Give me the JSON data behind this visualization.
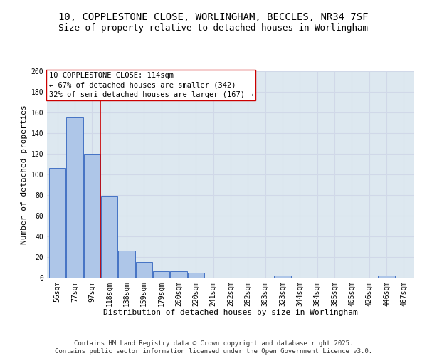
{
  "title1": "10, COPPLESTONE CLOSE, WORLINGHAM, BECCLES, NR34 7SF",
  "title2": "Size of property relative to detached houses in Worlingham",
  "xlabel": "Distribution of detached houses by size in Worlingham",
  "ylabel": "Number of detached properties",
  "categories": [
    "56sqm",
    "77sqm",
    "97sqm",
    "118sqm",
    "138sqm",
    "159sqm",
    "179sqm",
    "200sqm",
    "220sqm",
    "241sqm",
    "262sqm",
    "282sqm",
    "303sqm",
    "323sqm",
    "344sqm",
    "364sqm",
    "385sqm",
    "405sqm",
    "426sqm",
    "446sqm",
    "467sqm"
  ],
  "values": [
    106,
    155,
    120,
    79,
    26,
    15,
    6,
    6,
    5,
    0,
    0,
    0,
    0,
    2,
    0,
    0,
    0,
    0,
    0,
    2,
    0
  ],
  "bar_color": "#aec6e8",
  "bar_edge_color": "#4472c4",
  "vline_x": 2.5,
  "vline_color": "#cc0000",
  "annotation_text": "10 COPPLESTONE CLOSE: 114sqm\n← 67% of detached houses are smaller (342)\n32% of semi-detached houses are larger (167) →",
  "annotation_box_color": "#ffffff",
  "annotation_box_edge": "#cc0000",
  "ylim": [
    0,
    200
  ],
  "yticks": [
    0,
    20,
    40,
    60,
    80,
    100,
    120,
    140,
    160,
    180,
    200
  ],
  "grid_color": "#d0d8e8",
  "background_color": "#dde8f0",
  "footer": "Contains HM Land Registry data © Crown copyright and database right 2025.\nContains public sector information licensed under the Open Government Licence v3.0.",
  "title_fontsize": 10,
  "subtitle_fontsize": 9,
  "axis_label_fontsize": 8,
  "tick_fontsize": 7,
  "annotation_fontsize": 7.5,
  "footer_fontsize": 6.5
}
